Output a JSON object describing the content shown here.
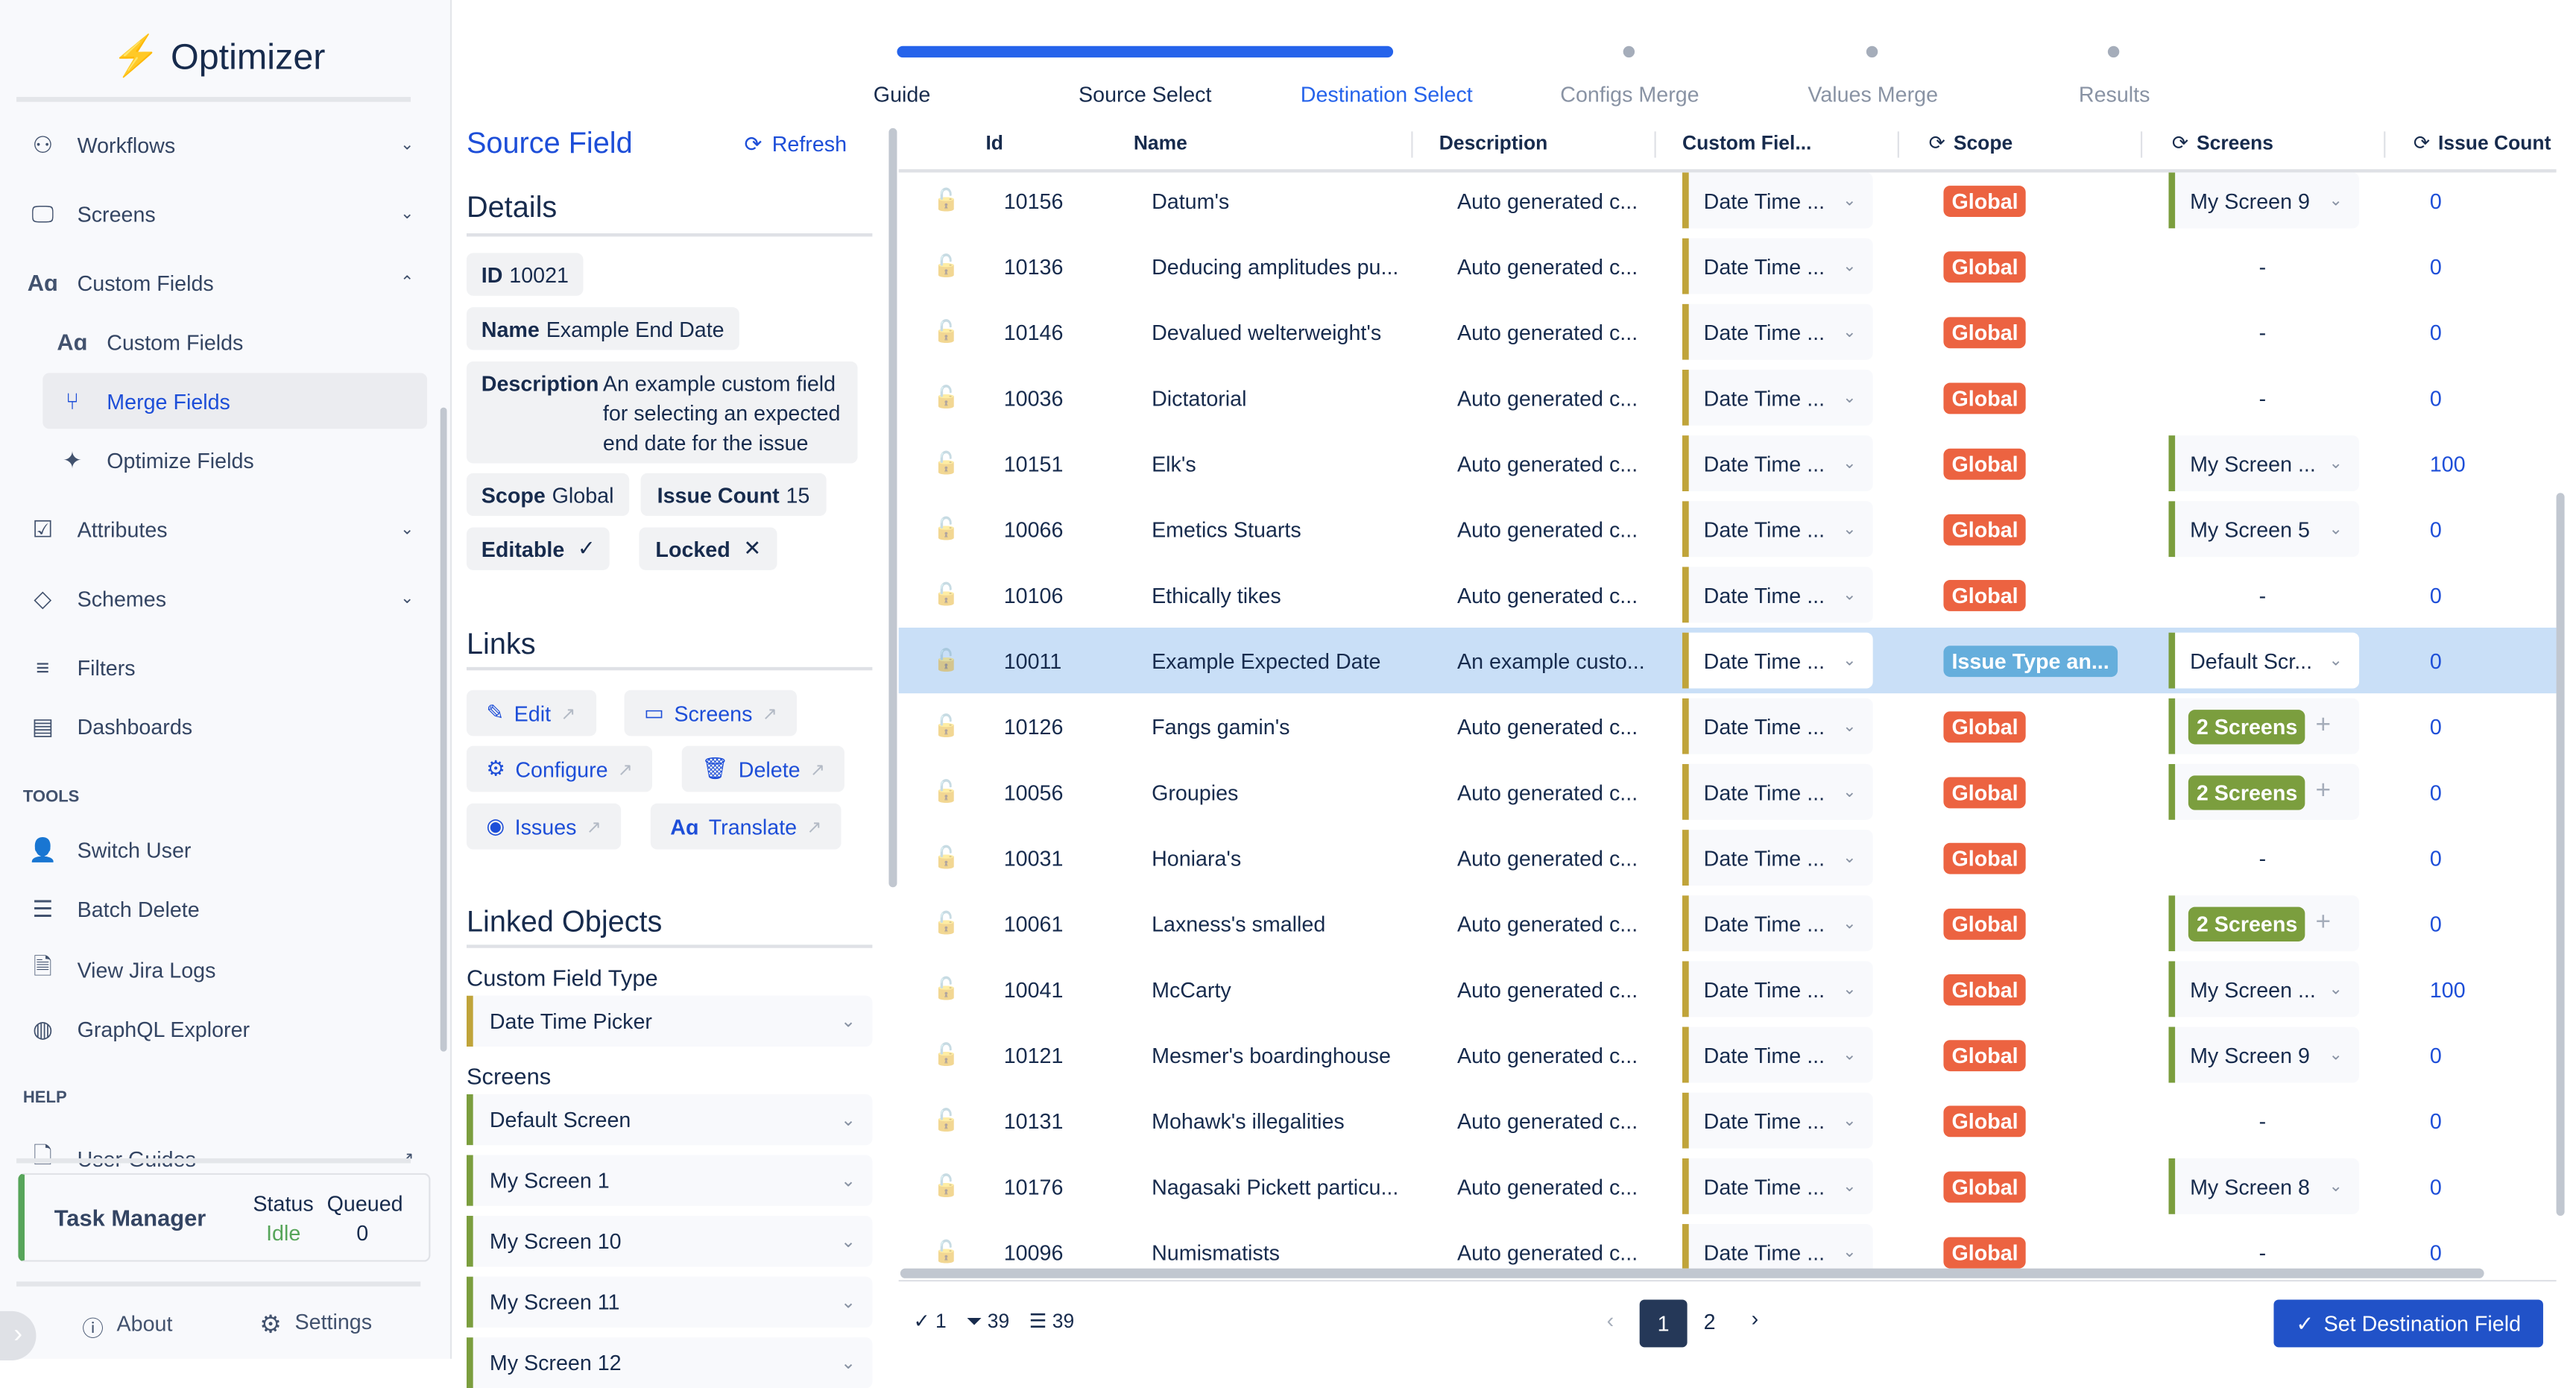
{
  "app": {
    "name": "Optimizer"
  },
  "sidebar": {
    "items": [
      {
        "label": "Workflows",
        "icon": "workflow-icon",
        "expanded": false
      },
      {
        "label": "Screens",
        "icon": "monitor-icon",
        "expanded": false
      },
      {
        "label": "Custom Fields",
        "icon": "font-icon",
        "expanded": true
      },
      {
        "label": "Custom Fields",
        "icon": "font-icon"
      },
      {
        "label": "Merge Fields",
        "icon": "merge-icon",
        "active": true
      },
      {
        "label": "Optimize Fields",
        "icon": "sparkle-icon"
      },
      {
        "label": "Attributes",
        "icon": "checklist-icon",
        "expanded": false
      },
      {
        "label": "Schemes",
        "icon": "tag-icon",
        "expanded": false
      },
      {
        "label": "Filters",
        "icon": "filter-icon"
      },
      {
        "label": "Dashboards",
        "icon": "dashboard-icon"
      }
    ],
    "tools_heading": "TOOLS",
    "tools": [
      {
        "label": "Switch User",
        "icon": "user-switch-icon"
      },
      {
        "label": "Batch Delete",
        "icon": "database-icon"
      },
      {
        "label": "View Jira Logs",
        "icon": "file-icon"
      },
      {
        "label": "GraphQL Explorer",
        "icon": "globe-icon"
      }
    ],
    "help_heading": "HELP",
    "help": [
      {
        "label": "User Guides",
        "icon": "document-icon"
      }
    ],
    "task_manager": {
      "title": "Task Manager",
      "status_label": "Status",
      "status": "Idle",
      "queued_label": "Queued",
      "queued": "0"
    },
    "about": "About",
    "settings": "Settings"
  },
  "source": {
    "title": "Source Field",
    "refresh": "Refresh",
    "details_heading": "Details",
    "id_label": "ID",
    "id": "10021",
    "name_label": "Name",
    "name": "Example End Date",
    "description_label": "Description",
    "description": "An example custom field for selecting an expected end date for the issue",
    "scope_label": "Scope",
    "scope": "Global",
    "issue_count_label": "Issue Count",
    "issue_count": "15",
    "editable_label": "Editable",
    "editable": "✓",
    "locked_label": "Locked",
    "locked": "✕",
    "links_heading": "Links",
    "links": [
      "Edit",
      "Screens",
      "Configure",
      "Delete",
      "Issues",
      "Translate"
    ],
    "linked_heading": "Linked Objects",
    "cft_label": "Custom Field Type",
    "cft": "Date Time Picker",
    "screens_label": "Screens",
    "screens": [
      "Default Screen",
      "My Screen 1",
      "My Screen 10",
      "My Screen 11",
      "My Screen 12"
    ]
  },
  "steps": {
    "items": [
      "Guide",
      "Source Select",
      "Destination Select",
      "Configs Merge",
      "Values Merge",
      "Results"
    ],
    "current": 2,
    "progress_percent": 33
  },
  "table": {
    "columns": [
      "Id",
      "Name",
      "Description",
      "Custom Fiel...",
      "Scope",
      "Screens",
      "Issue Count"
    ],
    "rows": [
      {
        "id": "10156",
        "name": "Datum's",
        "desc": "Auto generated c...",
        "cft": "Date Time ...",
        "scope": "Global",
        "screens": "My Screen 9",
        "screens_type": "select",
        "count": "0"
      },
      {
        "id": "10136",
        "name": "Deducing amplitudes pu...",
        "desc": "Auto generated c...",
        "cft": "Date Time ...",
        "scope": "Global",
        "screens": "-",
        "screens_type": "none",
        "count": "0"
      },
      {
        "id": "10146",
        "name": "Devalued welterweight's",
        "desc": "Auto generated c...",
        "cft": "Date Time ...",
        "scope": "Global",
        "screens": "-",
        "screens_type": "none",
        "count": "0"
      },
      {
        "id": "10036",
        "name": "Dictatorial",
        "desc": "Auto generated c...",
        "cft": "Date Time ...",
        "scope": "Global",
        "screens": "-",
        "screens_type": "none",
        "count": "0"
      },
      {
        "id": "10151",
        "name": "Elk's",
        "desc": "Auto generated c...",
        "cft": "Date Time ...",
        "scope": "Global",
        "screens": "My Screen ...",
        "screens_type": "select",
        "count": "100"
      },
      {
        "id": "10066",
        "name": "Emetics Stuarts",
        "desc": "Auto generated c...",
        "cft": "Date Time ...",
        "scope": "Global",
        "screens": "My Screen 5",
        "screens_type": "select",
        "count": "0"
      },
      {
        "id": "10106",
        "name": "Ethically tikes",
        "desc": "Auto generated c...",
        "cft": "Date Time ...",
        "scope": "Global",
        "screens": "-",
        "screens_type": "none",
        "count": "0"
      },
      {
        "id": "10011",
        "name": "Example Expected Date",
        "desc": "An example custo...",
        "cft": "Date Time ...",
        "scope": "Issue Type an...",
        "scope_color": "#65aedc",
        "screens": "Default Scr...",
        "screens_type": "select",
        "count": "0",
        "selected": true
      },
      {
        "id": "10126",
        "name": "Fangs gamin's",
        "desc": "Auto generated c...",
        "cft": "Date Time ...",
        "scope": "Global",
        "screens": "2 Screens",
        "screens_type": "badge",
        "count": "0"
      },
      {
        "id": "10056",
        "name": "Groupies",
        "desc": "Auto generated c...",
        "cft": "Date Time ...",
        "scope": "Global",
        "screens": "2 Screens",
        "screens_type": "badge",
        "count": "0"
      },
      {
        "id": "10031",
        "name": "Honiara's",
        "desc": "Auto generated c...",
        "cft": "Date Time ...",
        "scope": "Global",
        "screens": "-",
        "screens_type": "none",
        "count": "0"
      },
      {
        "id": "10061",
        "name": "Laxness's smalled",
        "desc": "Auto generated c...",
        "cft": "Date Time ...",
        "scope": "Global",
        "screens": "2 Screens",
        "screens_type": "badge",
        "count": "0"
      },
      {
        "id": "10041",
        "name": "McCarty",
        "desc": "Auto generated c...",
        "cft": "Date Time ...",
        "scope": "Global",
        "screens": "My Screen ...",
        "screens_type": "select",
        "count": "100"
      },
      {
        "id": "10121",
        "name": "Mesmer's boardinghouse",
        "desc": "Auto generated c...",
        "cft": "Date Time ...",
        "scope": "Global",
        "screens": "My Screen 9",
        "screens_type": "select",
        "count": "0"
      },
      {
        "id": "10131",
        "name": "Mohawk's illegalities",
        "desc": "Auto generated c...",
        "cft": "Date Time ...",
        "scope": "Global",
        "screens": "-",
        "screens_type": "none",
        "count": "0"
      },
      {
        "id": "10176",
        "name": "Nagasaki Pickett particu...",
        "desc": "Auto generated c...",
        "cft": "Date Time ...",
        "scope": "Global",
        "screens": "My Screen 8",
        "screens_type": "select",
        "count": "0"
      },
      {
        "id": "10096",
        "name": "Numismatists",
        "desc": "Auto generated c...",
        "cft": "Date Time ...",
        "scope": "Global",
        "screens": "-",
        "screens_type": "none",
        "count": "0"
      }
    ]
  },
  "footer": {
    "selected": "1",
    "filtered": "39",
    "total": "39",
    "pages": [
      "1",
      "2"
    ],
    "current_page": "1",
    "action": "Set Destination Field"
  },
  "colors": {
    "accent": "#2563eb",
    "global": "#ec6341",
    "screens_badge": "#7b9e3e",
    "cft_bar": "#c0a43a",
    "selected_row": "#c9dff7",
    "primary_button": "#2152c8"
  }
}
